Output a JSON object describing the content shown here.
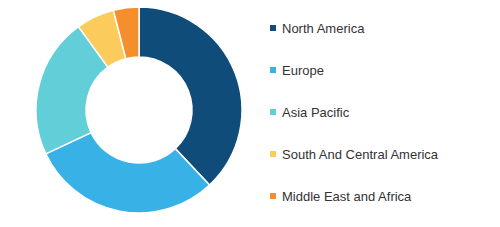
{
  "chart_data": {
    "type": "pie",
    "categories": [
      "North America",
      "Europe",
      "Asia Pacific",
      "South And Central America",
      "Middle East and Africa"
    ],
    "values": [
      38,
      30,
      22,
      6,
      4
    ],
    "colors": [
      "#0f4c7a",
      "#38b2e6",
      "#62cfd8",
      "#fbcb5c",
      "#f58f2e"
    ],
    "legend": "right"
  }
}
